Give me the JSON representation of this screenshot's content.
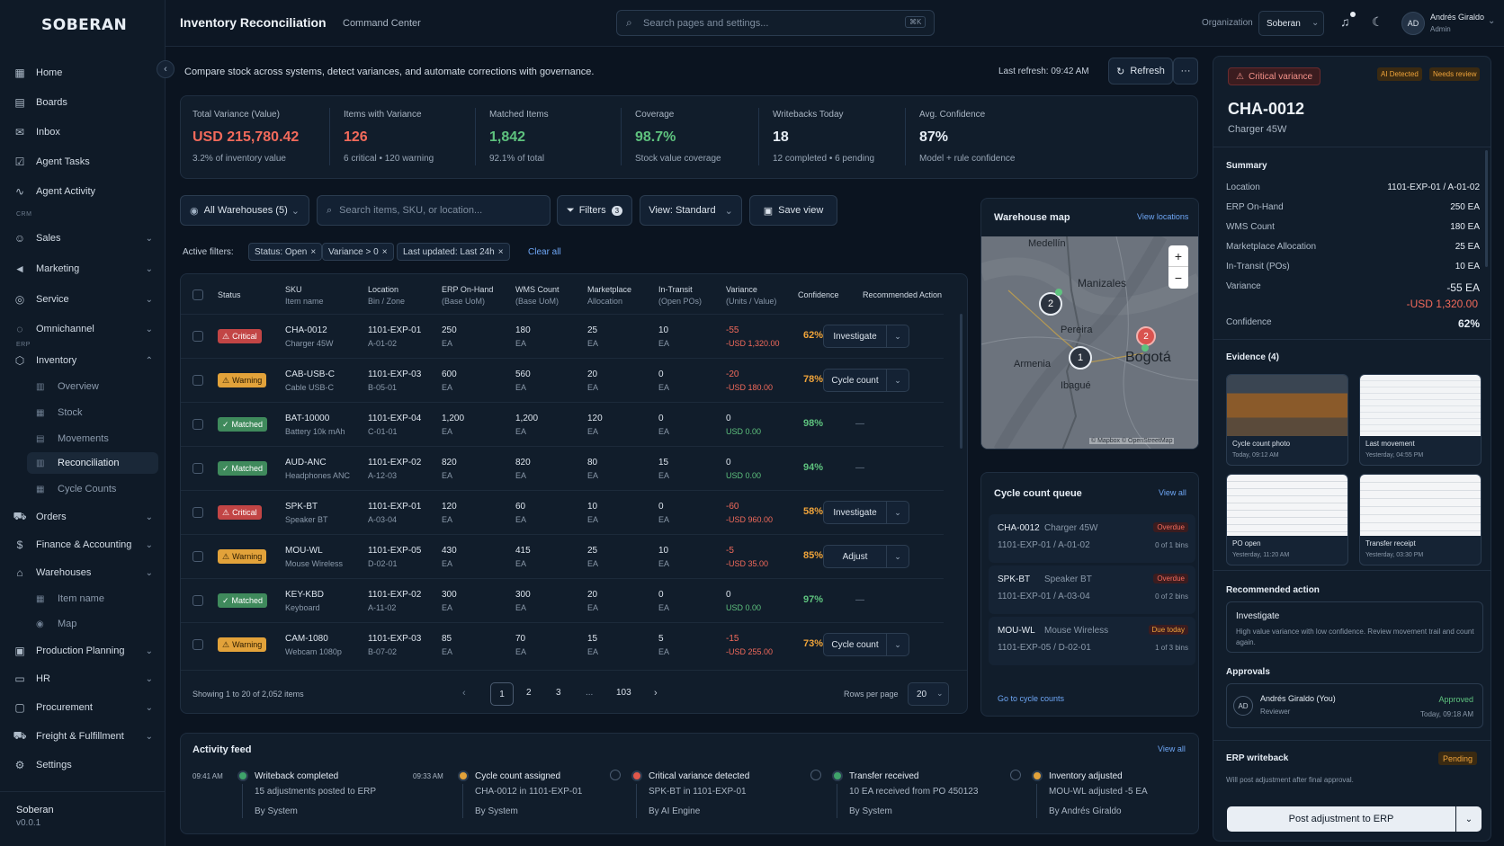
{
  "app": {
    "logo": "SOBERAN",
    "footer_name": "Soberan",
    "footer_version": "v0.0.1"
  },
  "sidebar": {
    "items": [
      {
        "label": "Home",
        "icon": "grid-icon"
      },
      {
        "label": "Boards",
        "icon": "board-icon"
      },
      {
        "label": "Inbox",
        "icon": "inbox-icon"
      },
      {
        "label": "Agent Tasks",
        "icon": "tasks-icon"
      },
      {
        "label": "Agent Activity",
        "icon": "activity-icon"
      }
    ],
    "section_crm": "CRM",
    "crm_items": [
      {
        "label": "Sales",
        "icon": "users-icon"
      },
      {
        "label": "Marketing",
        "icon": "megaphone-icon"
      },
      {
        "label": "Service",
        "icon": "support-icon"
      },
      {
        "label": "Omnichannel",
        "icon": "chat-icon"
      }
    ],
    "section_erp": "ERP",
    "inventory": {
      "label": "Inventory",
      "icon": "box-icon",
      "subs": [
        "Overview",
        "Stock",
        "Movements",
        "Reconciliation",
        "Cycle Counts"
      ]
    },
    "erp_items": [
      {
        "label": "Orders",
        "icon": "cart-icon"
      },
      {
        "label": "Finance & Accounting",
        "icon": "finance-icon"
      },
      {
        "label": "Warehouses",
        "icon": "warehouse-icon"
      }
    ],
    "warehouse_subs": [
      "Item name",
      "Map"
    ],
    "more_items": [
      {
        "label": "Production Planning",
        "icon": "factory-icon"
      },
      {
        "label": "HR",
        "icon": "id-card-icon"
      },
      {
        "label": "Procurement",
        "icon": "clipboard-icon"
      },
      {
        "label": "Freight & Fulfillment",
        "icon": "truck-icon"
      },
      {
        "label": "Settings",
        "icon": "gear-icon"
      }
    ]
  },
  "header": {
    "title": "Inventory Reconciliation",
    "subtitle": "Command Center",
    "search_placeholder": "Search pages and settings...",
    "shortcut": "⌘K",
    "org_label": "Organization",
    "org_value": "Soberan",
    "user_initials": "AD",
    "user_name": "Andrés Giraldo",
    "user_role": "Admin"
  },
  "intro": {
    "text": "Compare stock across systems, detect variances, and automate corrections with governance.",
    "last_refresh_label": "Last refresh:",
    "last_refresh_time": "09:42 AM",
    "refresh_label": "Refresh",
    "more_label": "···"
  },
  "kpis": [
    {
      "label": "Total Variance (Value)",
      "value": "USD 215,780.42",
      "sub": "3.2% of inventory value",
      "color": "#f26a5b"
    },
    {
      "label": "Items with Variance",
      "value": "126",
      "sub": "6 critical • 120 warning",
      "color": "#f26a5b"
    },
    {
      "label": "Matched Items",
      "value": "1,842",
      "sub": "92.1% of total",
      "color": "#5ec27e"
    },
    {
      "label": "Coverage",
      "value": "98.7%",
      "sub": "Stock value coverage",
      "color": "#5ec27e"
    },
    {
      "label": "Writebacks Today",
      "value": "18",
      "sub": "12 completed • 6 pending",
      "color": "#e6edf5"
    },
    {
      "label": "Avg. Confidence",
      "value": "87%",
      "sub": "Model + rule confidence",
      "color": "#e6edf5"
    }
  ],
  "filters": {
    "warehouse": "All Warehouses (5)",
    "search_placeholder": "Search items, SKU, or location...",
    "filters_label": "Filters",
    "filters_count": "3",
    "view_label": "View: Standard",
    "save_view": "Save view",
    "active_label": "Active filters:",
    "chips": [
      "Status: Open",
      "Variance > 0",
      "Last updated: Last 24h"
    ],
    "clear": "Clear all"
  },
  "table": {
    "headers": [
      {
        "t": "Status",
        "s": ""
      },
      {
        "t": "SKU",
        "s": "Item name"
      },
      {
        "t": "Location",
        "s": "Bin / Zone"
      },
      {
        "t": "ERP On-Hand",
        "s": "(Base UoM)"
      },
      {
        "t": "WMS Count",
        "s": "(Base UoM)"
      },
      {
        "t": "Marketplace",
        "s": "Allocation"
      },
      {
        "t": "In-Transit",
        "s": "(Open POs)"
      },
      {
        "t": "Variance",
        "s": "(Units / Value)"
      },
      {
        "t": "Confidence",
        "s": ""
      },
      {
        "t": "Recommended Action",
        "s": ""
      }
    ],
    "rows": [
      {
        "status": "Critical",
        "sku": "CHA-0012",
        "name": "Charger 45W",
        "loc": "1101-EXP-01",
        "bin": "A-01-02",
        "erp": "250",
        "wms": "180",
        "mkt": "25",
        "transit": "10",
        "uom": "EA",
        "var_units": "-55",
        "var_value": "-USD 1,320.00",
        "conf": "62%",
        "action": "Investigate"
      },
      {
        "status": "Warning",
        "sku": "CAB-USB-C",
        "name": "Cable USB-C",
        "loc": "1101-EXP-03",
        "bin": "B-05-01",
        "erp": "600",
        "wms": "560",
        "mkt": "20",
        "transit": "0",
        "uom": "EA",
        "var_units": "-20",
        "var_value": "-USD 180.00",
        "conf": "78%",
        "action": "Cycle count"
      },
      {
        "status": "Matched",
        "sku": "BAT-10000",
        "name": "Battery 10k mAh",
        "loc": "1101-EXP-04",
        "bin": "C-01-01",
        "erp": "1,200",
        "wms": "1,200",
        "mkt": "120",
        "transit": "0",
        "uom": "EA",
        "var_units": "0",
        "var_value": "USD 0.00",
        "conf": "98%",
        "action": "—"
      },
      {
        "status": "Matched",
        "sku": "AUD-ANC",
        "name": "Headphones ANC",
        "loc": "1101-EXP-02",
        "bin": "A-12-03",
        "erp": "820",
        "wms": "820",
        "mkt": "80",
        "transit": "15",
        "uom": "EA",
        "var_units": "0",
        "var_value": "USD 0.00",
        "conf": "94%",
        "action": "—"
      },
      {
        "status": "Critical",
        "sku": "SPK-BT",
        "name": "Speaker BT",
        "loc": "1101-EXP-01",
        "bin": "A-03-04",
        "erp": "120",
        "wms": "60",
        "mkt": "10",
        "transit": "0",
        "uom": "EA",
        "var_units": "-60",
        "var_value": "-USD 960.00",
        "conf": "58%",
        "action": "Investigate"
      },
      {
        "status": "Warning",
        "sku": "MOU-WL",
        "name": "Mouse Wireless",
        "loc": "1101-EXP-05",
        "bin": "D-02-01",
        "erp": "430",
        "wms": "415",
        "mkt": "25",
        "transit": "10",
        "uom": "EA",
        "var_units": "-5",
        "var_value": "-USD 35.00",
        "conf": "85%",
        "action": "Adjust"
      },
      {
        "status": "Matched",
        "sku": "KEY-KBD",
        "name": "Keyboard",
        "loc": "1101-EXP-02",
        "bin": "A-11-02",
        "erp": "300",
        "wms": "300",
        "mkt": "20",
        "transit": "0",
        "uom": "EA",
        "var_units": "0",
        "var_value": "USD 0.00",
        "conf": "97%",
        "action": "—"
      },
      {
        "status": "Warning",
        "sku": "CAM-1080",
        "name": "Webcam 1080p",
        "loc": "1101-EXP-03",
        "bin": "B-07-02",
        "erp": "85",
        "wms": "70",
        "mkt": "15",
        "transit": "5",
        "uom": "EA",
        "var_units": "-15",
        "var_value": "-USD 255.00",
        "conf": "73%",
        "action": "Cycle count"
      }
    ],
    "showing": "Showing 1 to 20 of 2,052 items",
    "pages": [
      "1",
      "2",
      "3",
      "...",
      "103"
    ],
    "rows_per_page_label": "Rows per page",
    "rows_per_page": "20"
  },
  "map": {
    "title": "Warehouse map",
    "link": "View locations",
    "cities": [
      "Medellín",
      "Manizales",
      "Pereira",
      "Bogotá",
      "Ibagué",
      "Armenia"
    ],
    "clusters": [
      "2",
      "1",
      "2"
    ],
    "attribution": "© Mapbox © OpenStreetMap",
    "zoom_in": "+",
    "zoom_out": "−"
  },
  "queue": {
    "title": "Cycle count queue",
    "link": "View all",
    "items": [
      {
        "sku": "CHA-0012",
        "name": "Charger 45W",
        "loc": "1101-EXP-01 / A-01-02",
        "tag": "Overdue",
        "bins": "0 of 1 bins"
      },
      {
        "sku": "SPK-BT",
        "name": "Speaker BT",
        "loc": "1101-EXP-01 / A-03-04",
        "tag": "Overdue",
        "bins": "0 of 2 bins"
      },
      {
        "sku": "MOU-WL",
        "name": "Mouse Wireless",
        "loc": "1101-EXP-05 / D-02-01",
        "tag": "Due today",
        "bins": "1 of 3 bins"
      }
    ],
    "footer_link": "Go to cycle counts"
  },
  "feed": {
    "title": "Activity feed",
    "link": "View all",
    "items": [
      {
        "time": "09:41 AM",
        "title": "Writeback completed",
        "desc": "15 adjustments posted to ERP",
        "by": "By System",
        "dot": "#3fa36a"
      },
      {
        "time": "09:33 AM",
        "title": "Cycle count assigned",
        "desc": "CHA-0012 in 1101-EXP-01",
        "by": "By System",
        "dot": "#e2a23a"
      },
      {
        "time": "",
        "title": "Critical variance detected",
        "desc": "SPK-BT in 1101-EXP-01",
        "by": "By AI Engine",
        "dot": "#e0574a"
      },
      {
        "time": "",
        "title": "Transfer received",
        "desc": "10 EA received from PO 450123",
        "by": "By System",
        "dot": "#3fa36a"
      },
      {
        "time": "",
        "title": "Inventory adjusted",
        "desc": "MOU-WL adjusted -5 EA",
        "by": "By Andrés Giraldo",
        "dot": "#e2a23a"
      }
    ]
  },
  "detail": {
    "alert": "Critical variance",
    "tag1": "AI Detected",
    "tag2": "Needs review",
    "sku": "CHA-0012",
    "name": "Charger 45W",
    "summary_title": "Summary",
    "summary": [
      {
        "k": "Location",
        "v": "1101-EXP-01 / A-01-02"
      },
      {
        "k": "ERP On-Hand",
        "v": "250 EA"
      },
      {
        "k": "WMS Count",
        "v": "180 EA"
      },
      {
        "k": "Marketplace Allocation",
        "v": "25 EA"
      },
      {
        "k": "In-Transit (POs)",
        "v": "10 EA"
      }
    ],
    "variance_label": "Variance",
    "variance_units": "-55 EA",
    "variance_value": "-USD 1,320.00",
    "confidence_label": "Confidence",
    "confidence_value": "62%",
    "evidence_title": "Evidence (4)",
    "evidence": [
      {
        "t": "Cycle count photo",
        "d": "Today, 09:12 AM"
      },
      {
        "t": "Last movement",
        "d": "Yesterday, 04:55 PM"
      },
      {
        "t": "PO open",
        "d": "Yesterday, 11:20 AM"
      },
      {
        "t": "Transfer receipt",
        "d": "Yesterday, 03:30 PM"
      }
    ],
    "rec_title": "Recommended action",
    "rec_action": "Investigate",
    "rec_desc": "High value variance with low confidence. Review movement trail and count again.",
    "approvals_title": "Approvals",
    "approver_initials": "AD",
    "approver": "Andrés Giraldo (You)",
    "approver_role": "Reviewer",
    "approved": "Approved",
    "approved_time": "Today, 09:18 AM",
    "writeback_title": "ERP writeback",
    "writeback_status": "Pending",
    "writeback_desc": "Will post adjustment after final approval.",
    "post_button": "Post adjustment to ERP"
  }
}
